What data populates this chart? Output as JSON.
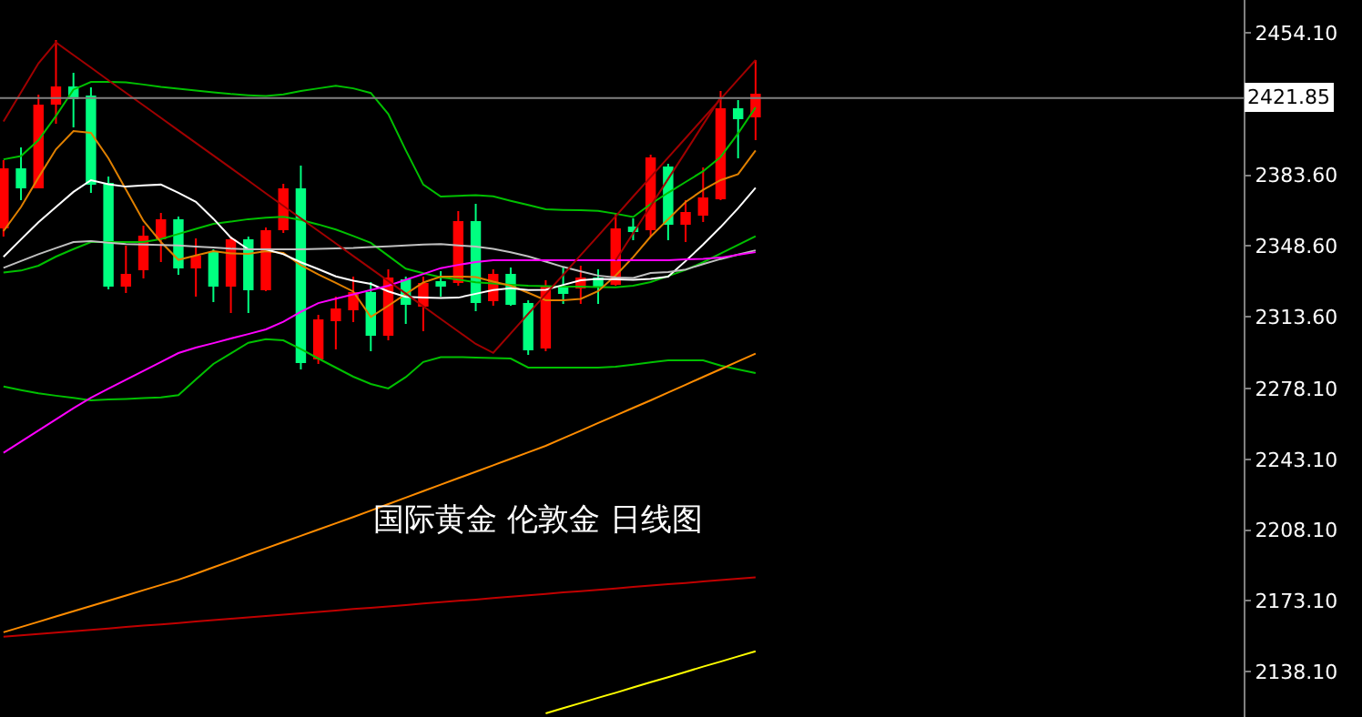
{
  "chart_data": {
    "type": "candlestick",
    "annotations": [
      "国际黄金 伦敦金 日线图"
    ],
    "categories": [
      null,
      null,
      null,
      null,
      null,
      null,
      null,
      null,
      null,
      null,
      null,
      null,
      null,
      null,
      null,
      null,
      null,
      null,
      null,
      null,
      null,
      null,
      null,
      null,
      null,
      null,
      null,
      null,
      null,
      null,
      null,
      null,
      null,
      null,
      null,
      null,
      null,
      null,
      null,
      null,
      null,
      null,
      null,
      null
    ],
    "ohlc": [
      [
        2357.8,
        2391.1,
        2353.3,
        2386.6
      ],
      [
        2386.6,
        2397.4,
        2371.3,
        2377.6
      ],
      [
        2377.6,
        2423.5,
        2377.6,
        2418.1
      ],
      [
        2419.0,
        2450.5,
        2409.1,
        2427.1
      ],
      [
        2427.1,
        2434.3,
        2407.3,
        2421.7
      ],
      [
        2422.6,
        2427.1,
        2374.9,
        2379.4
      ],
      [
        2379.4,
        2383.0,
        2327.2,
        2329.0
      ],
      [
        2329.0,
        2348.8,
        2325.4,
        2334.4
      ],
      [
        2337.1,
        2358.7,
        2332.6,
        2353.3
      ],
      [
        2352.4,
        2365.0,
        2340.7,
        2361.4
      ],
      [
        2361.4,
        2363.2,
        2334.4,
        2338.0
      ],
      [
        2338.0,
        2352.4,
        2323.6,
        2343.4
      ],
      [
        2345.2,
        2347.0,
        2320.9,
        2329.0
      ],
      [
        2329.0,
        2353.3,
        2315.5,
        2351.5
      ],
      [
        2351.5,
        2353.3,
        2315.5,
        2327.2
      ],
      [
        2327.2,
        2357.8,
        2326.3,
        2356.0
      ],
      [
        2356.9,
        2379.4,
        2355.1,
        2376.7
      ],
      [
        2376.7,
        2388.4,
        2287.6,
        2291.2
      ],
      [
        2293.0,
        2314.6,
        2290.3,
        2311.9
      ],
      [
        2311.9,
        2323.6,
        2297.5,
        2317.3
      ],
      [
        2317.3,
        2333.5,
        2311.0,
        2325.4
      ],
      [
        2325.4,
        2330.8,
        2296.6,
        2304.7
      ],
      [
        2304.7,
        2337.1,
        2302.0,
        2332.6
      ],
      [
        2331.7,
        2333.5,
        2310.1,
        2320.0
      ],
      [
        2319.1,
        2333.5,
        2306.5,
        2329.9
      ],
      [
        2330.8,
        2336.2,
        2323.6,
        2329.0
      ],
      [
        2330.8,
        2365.9,
        2329.0,
        2360.5
      ],
      [
        2360.5,
        2369.5,
        2316.4,
        2320.9
      ],
      [
        2321.8,
        2337.1,
        2319.1,
        2334.4
      ],
      [
        2334.4,
        2338.0,
        2319.1,
        2320.0
      ],
      [
        2320.0,
        2321.8,
        2294.8,
        2297.5
      ],
      [
        2298.4,
        2331.7,
        2296.6,
        2328.1
      ],
      [
        2328.1,
        2338.0,
        2320.0,
        2325.4
      ],
      [
        2328.1,
        2338.9,
        2320.0,
        2332.6
      ],
      [
        2332.6,
        2337.1,
        2320.0,
        2329.0
      ],
      [
        2329.9,
        2365.0,
        2329.0,
        2356.9
      ],
      [
        2357.8,
        2362.3,
        2351.5,
        2356.0
      ],
      [
        2356.9,
        2393.8,
        2353.3,
        2392.0
      ],
      [
        2387.5,
        2389.3,
        2351.5,
        2359.6
      ],
      [
        2359.6,
        2371.3,
        2350.6,
        2365.0
      ],
      [
        2364.1,
        2387.5,
        2360.5,
        2372.2
      ],
      [
        2372.2,
        2425.3,
        2371.3,
        2416.3
      ],
      [
        2416.3,
        2420.8,
        2392.0,
        2411.8
      ],
      [
        2412.7,
        2440.6,
        2401.0,
        2423.5
      ]
    ],
    "colors": [
      "#ff0000",
      "#00ff80",
      "#ff0000",
      "#ff0000",
      "#00ff80",
      "#00ff80",
      "#00ff80",
      "#ff0000",
      "#ff0000",
      "#ff0000",
      "#00ff80",
      "#ff0000",
      "#00ff80",
      "#ff0000",
      "#00ff80",
      "#ff0000",
      "#ff0000",
      "#00ff80",
      "#ff0000",
      "#ff0000",
      "#ff0000",
      "#00ff80",
      "#ff0000",
      "#00ff80",
      "#ff0000",
      "#00ff80",
      "#ff0000",
      "#00ff80",
      "#ff0000",
      "#00ff80",
      "#00ff80",
      "#ff0000",
      "#00ff80",
      "#ff0000",
      "#00ff80",
      "#ff0000",
      "#00ff80",
      "#ff0000",
      "#00ff80",
      "#ff0000",
      "#ff0000",
      "#ff0000",
      "#00ff80",
      "#ff0000"
    ],
    "series": [
      {
        "type": "line",
        "color": "#00c000",
        "values": [
          2391.5,
          2393.1,
          2401.0,
          2413.0,
          2426.0,
          2429.8,
          2429.8,
          2429.6,
          2428.5,
          2427.3,
          2426.4,
          2425.5,
          2424.6,
          2423.8,
          2423.2,
          2422.8,
          2423.6,
          2425.3,
          2426.6,
          2427.9,
          2426.6,
          2424.3,
          2413.9,
          2396.0,
          2379.0,
          2373.1,
          2373.4,
          2373.8,
          2373.2,
          2371.0,
          2368.9,
          2366.8,
          2366.5,
          2366.3,
          2366.0,
          2364.6,
          2363.0,
          2369.4,
          2375.0,
          2380.3,
          2385.6,
          2392.7,
          2404.3,
          2417.2
        ]
      },
      {
        "type": "line",
        "color": "#00c000",
        "values": [
          2335.5,
          2336.5,
          2338.9,
          2343.4,
          2347.1,
          2350.6,
          2350.6,
          2350.6,
          2350.6,
          2352.1,
          2354.6,
          2357.1,
          2359.6,
          2360.7,
          2361.9,
          2362.6,
          2363.1,
          2361.5,
          2359.3,
          2356.8,
          2353.6,
          2350.2,
          2343.8,
          2337.4,
          2335.2,
          2333.2,
          2332.0,
          2330.7,
          2330.1,
          2329.5,
          2329.0,
          2328.8,
          2328.6,
          2328.5,
          2328.3,
          2328.2,
          2329.0,
          2330.8,
          2333.8,
          2336.8,
          2340.6,
          2344.9,
          2349.2,
          2353.5
        ]
      },
      {
        "type": "line",
        "color": "#00c000",
        "values": [
          2279.2,
          2277.4,
          2275.8,
          2274.6,
          2273.5,
          2272.3,
          2272.7,
          2273.0,
          2273.4,
          2273.8,
          2274.9,
          2282.6,
          2290.3,
          2295.5,
          2300.8,
          2302.6,
          2302.0,
          2297.7,
          2293.0,
          2288.5,
          2284.0,
          2280.4,
          2278.2,
          2283.8,
          2291.3,
          2293.7,
          2293.7,
          2293.5,
          2293.2,
          2293.0,
          2288.5,
          2288.5,
          2288.5,
          2288.5,
          2288.5,
          2289.0,
          2290.0,
          2291.1,
          2292.1,
          2292.1,
          2292.1,
          2289.5,
          2287.6,
          2285.8
        ]
      },
      {
        "type": "line",
        "color": "#e08000",
        "values": [
          2356.0,
          2367.9,
          2382.5,
          2396.5,
          2405.5,
          2404.6,
          2392.0,
          2376.6,
          2361.1,
          2350.6,
          2341.8,
          2344.0,
          2346.1,
          2345.0,
          2344.8,
          2346.1,
          2345.2,
          2339.2,
          2334.6,
          2330.4,
          2326.1,
          2313.5,
          2319.1,
          2324.9,
          2330.6,
          2333.5,
          2333.5,
          2333.3,
          2331.0,
          2329.0,
          2325.5,
          2321.8,
          2321.8,
          2322.5,
          2326.3,
          2334.1,
          2343.1,
          2353.3,
          2361.9,
          2370.4,
          2376.4,
          2381.2,
          2384.2,
          2395.9
        ]
      },
      {
        "type": "line",
        "color": "#ffffff",
        "values": [
          2343.3,
          2351.9,
          2360.4,
          2367.9,
          2375.4,
          2381.2,
          2379.2,
          2378.0,
          2378.6,
          2379.0,
          2375.0,
          2370.5,
          2362.1,
          2352.8,
          2347.0,
          2347.0,
          2344.6,
          2340.6,
          2337.2,
          2333.6,
          2331.5,
          2329.9,
          2326.2,
          2323.5,
          2323.2,
          2322.9,
          2323.1,
          2325.0,
          2326.9,
          2327.8,
          2326.9,
          2327.0,
          2329.4,
          2331.7,
          2332.4,
          2332.2,
          2331.9,
          2332.4,
          2333.5,
          2341.2,
          2349.4,
          2358.0,
          2367.3,
          2377.4
        ]
      },
      {
        "type": "line",
        "color": "#c0c0c0",
        "values": [
          2337.8,
          2341.2,
          2344.6,
          2347.6,
          2350.6,
          2351.0,
          2350.3,
          2349.6,
          2349.4,
          2349.1,
          2348.9,
          2348.4,
          2347.9,
          2347.3,
          2347.0,
          2347.0,
          2347.0,
          2347.0,
          2347.2,
          2347.5,
          2347.7,
          2348.1,
          2348.5,
          2348.9,
          2349.4,
          2349.6,
          2348.9,
          2348.3,
          2347.2,
          2345.5,
          2343.5,
          2340.9,
          2338.3,
          2336.1,
          2334.0,
          2333.1,
          2332.8,
          2335.3,
          2335.8,
          2337.0,
          2339.7,
          2342.2,
          2344.4,
          2346.5
        ]
      },
      {
        "type": "line",
        "color": "#ff00ff",
        "values": [
          2246.4,
          2251.9,
          2257.4,
          2262.9,
          2268.4,
          2273.6,
          2278.1,
          2282.5,
          2286.9,
          2291.3,
          2295.7,
          2298.4,
          2300.6,
          2302.9,
          2305.1,
          2307.4,
          2311.2,
          2316.1,
          2320.4,
          2322.6,
          2324.7,
          2326.9,
          2329.0,
          2331.9,
          2334.8,
          2337.7,
          2339.3,
          2340.7,
          2341.6,
          2341.6,
          2341.6,
          2341.6,
          2341.6,
          2341.6,
          2341.6,
          2341.6,
          2341.6,
          2341.6,
          2341.6,
          2342.0,
          2342.3,
          2342.9,
          2344.3,
          2345.6
        ]
      },
      {
        "type": "line",
        "color": "#ff8c00",
        "values": [
          2157.6,
          2160.2,
          2162.8,
          2165.4,
          2168.0,
          2170.6,
          2173.2,
          2175.8,
          2178.4,
          2181.0,
          2183.6,
          2186.6,
          2189.7,
          2192.8,
          2196.0,
          2199.1,
          2202.2,
          2205.3,
          2208.4,
          2211.5,
          2214.6,
          2217.8,
          2221.0,
          2224.2,
          2227.4,
          2230.6,
          2233.8,
          2237.0,
          2240.2,
          2243.4,
          2246.6,
          2249.8,
          2253.6,
          2257.3,
          2261.1,
          2264.8,
          2268.6,
          2272.3,
          2276.2,
          2280.0,
          2283.9,
          2287.7,
          2291.6,
          2295.4
        ]
      },
      {
        "type": "line",
        "color": "#c00000",
        "values": [
          2155.4,
          2156.1,
          2156.8,
          2157.4,
          2158.1,
          2158.8,
          2159.5,
          2160.2,
          2160.9,
          2161.5,
          2162.2,
          2162.9,
          2163.6,
          2164.3,
          2165.0,
          2165.6,
          2166.3,
          2167.0,
          2167.7,
          2168.4,
          2169.1,
          2169.7,
          2170.4,
          2171.1,
          2171.8,
          2172.5,
          2173.2,
          2173.8,
          2174.5,
          2175.2,
          2175.9,
          2176.6,
          2177.3,
          2177.9,
          2178.6,
          2179.3,
          2180.0,
          2180.7,
          2181.4,
          2182.0,
          2182.7,
          2183.4,
          2184.1,
          2184.8
        ]
      },
      {
        "type": "line",
        "color": "#ffff00",
        "values": [
          null,
          null,
          null,
          null,
          null,
          null,
          null,
          null,
          null,
          null,
          null,
          null,
          null,
          null,
          null,
          null,
          null,
          null,
          null,
          null,
          null,
          null,
          null,
          null,
          null,
          null,
          null,
          null,
          null,
          null,
          null,
          2117.5,
          2120.1,
          2122.6,
          2125.2,
          2127.7,
          2130.3,
          2132.9,
          2135.4,
          2138.0,
          2140.6,
          2143.1,
          2145.7,
          2148.2
        ]
      },
      {
        "type": "line",
        "color": "#a00000",
        "values": [
          2410.2,
          2424.6,
          2439.0,
          2449.3,
          2443.1,
          2436.9,
          2430.6,
          2424.4,
          2418.2,
          2412.0,
          2405.8,
          2399.6,
          2393.4,
          2387.2,
          2381.0,
          2374.7,
          2368.5,
          2362.3,
          2356.1,
          2349.9,
          2343.7,
          2337.5,
          2331.3,
          2325.1,
          2318.8,
          2312.6,
          2306.4,
          2300.2,
          2295.8,
          2305.4,
          2315.1,
          2324.8,
          2334.4,
          2344.1,
          2353.7,
          2363.4,
          2373.1,
          2382.7,
          2392.4,
          2402.0,
          2411.7,
          2421.3,
          2431.0,
          2440.6
        ]
      },
      {
        "type": "line",
        "color": "#a00000",
        "values": [
          null,
          null,
          null,
          null,
          null,
          null,
          null,
          null,
          null,
          null,
          null,
          null,
          null,
          null,
          null,
          null,
          null,
          null,
          null,
          null,
          null,
          null,
          null,
          null,
          null,
          null,
          null,
          null,
          null,
          null,
          null,
          null,
          null,
          null,
          null,
          2341.5,
          2355.0,
          2368.4,
          2381.8,
          2395.2,
          2408.7,
          2422.1,
          null,
          null
        ]
      }
    ],
    "ref_lines": [
      {
        "axis": "y",
        "value": 2421.85,
        "label": "2421.85",
        "color": "#808080"
      }
    ],
    "ylim": [
      2115.7,
      2470.3
    ],
    "yticks": [
      {
        "value": 2454.1,
        "label": "2454.10"
      },
      {
        "value": 2383.6,
        "label": "2383.60"
      },
      {
        "value": 2348.6,
        "label": "2348.60"
      },
      {
        "value": 2313.6,
        "label": "2313.60"
      },
      {
        "value": 2278.1,
        "label": "2278.10"
      },
      {
        "value": 2243.1,
        "label": "2243.10"
      },
      {
        "value": 2208.1,
        "label": "2208.10"
      },
      {
        "value": 2173.1,
        "label": "2173.10"
      },
      {
        "value": 2138.1,
        "label": "2138.10"
      }
    ],
    "tick_labels": "y"
  }
}
